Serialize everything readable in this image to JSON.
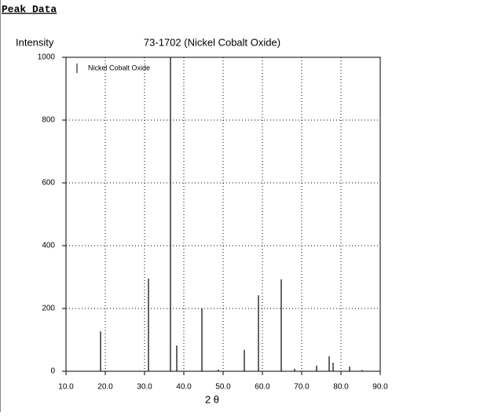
{
  "header": {
    "title": "Peak Data"
  },
  "chart_data": {
    "type": "stem",
    "title": "73-1702 (Nickel Cobalt Oxide)",
    "y_label": "Intensity",
    "x_label": "2 θ",
    "x": [
      18.8,
      31.0,
      36.6,
      38.2,
      44.6,
      48.8,
      55.4,
      59.0,
      64.8,
      68.2,
      73.8,
      77.0,
      78.0,
      82.2,
      85.4
    ],
    "series": [
      {
        "name": "Nickel Cobalt Oxide",
        "color": "#000000",
        "values": [
          127,
          295,
          1000,
          82,
          200,
          5,
          68,
          242,
          293,
          8,
          18,
          48,
          27,
          15,
          4
        ]
      }
    ],
    "xlim": [
      10,
      90
    ],
    "xticks": [
      {
        "value": 10,
        "label": "10.0"
      },
      {
        "value": 20,
        "label": "20.0"
      },
      {
        "value": 30,
        "label": "30.0"
      },
      {
        "value": 40,
        "label": "40.0"
      },
      {
        "value": 50,
        "label": "50.0"
      },
      {
        "value": 60,
        "label": "60.0"
      },
      {
        "value": 70,
        "label": "70.0"
      },
      {
        "value": 80,
        "label": "80.0"
      },
      {
        "value": 90,
        "label": "90.0"
      }
    ],
    "ylim": [
      0,
      1000
    ],
    "yticks": [
      0,
      200,
      400,
      600,
      800,
      1000
    ],
    "grid": true,
    "legend": "upper-left"
  }
}
